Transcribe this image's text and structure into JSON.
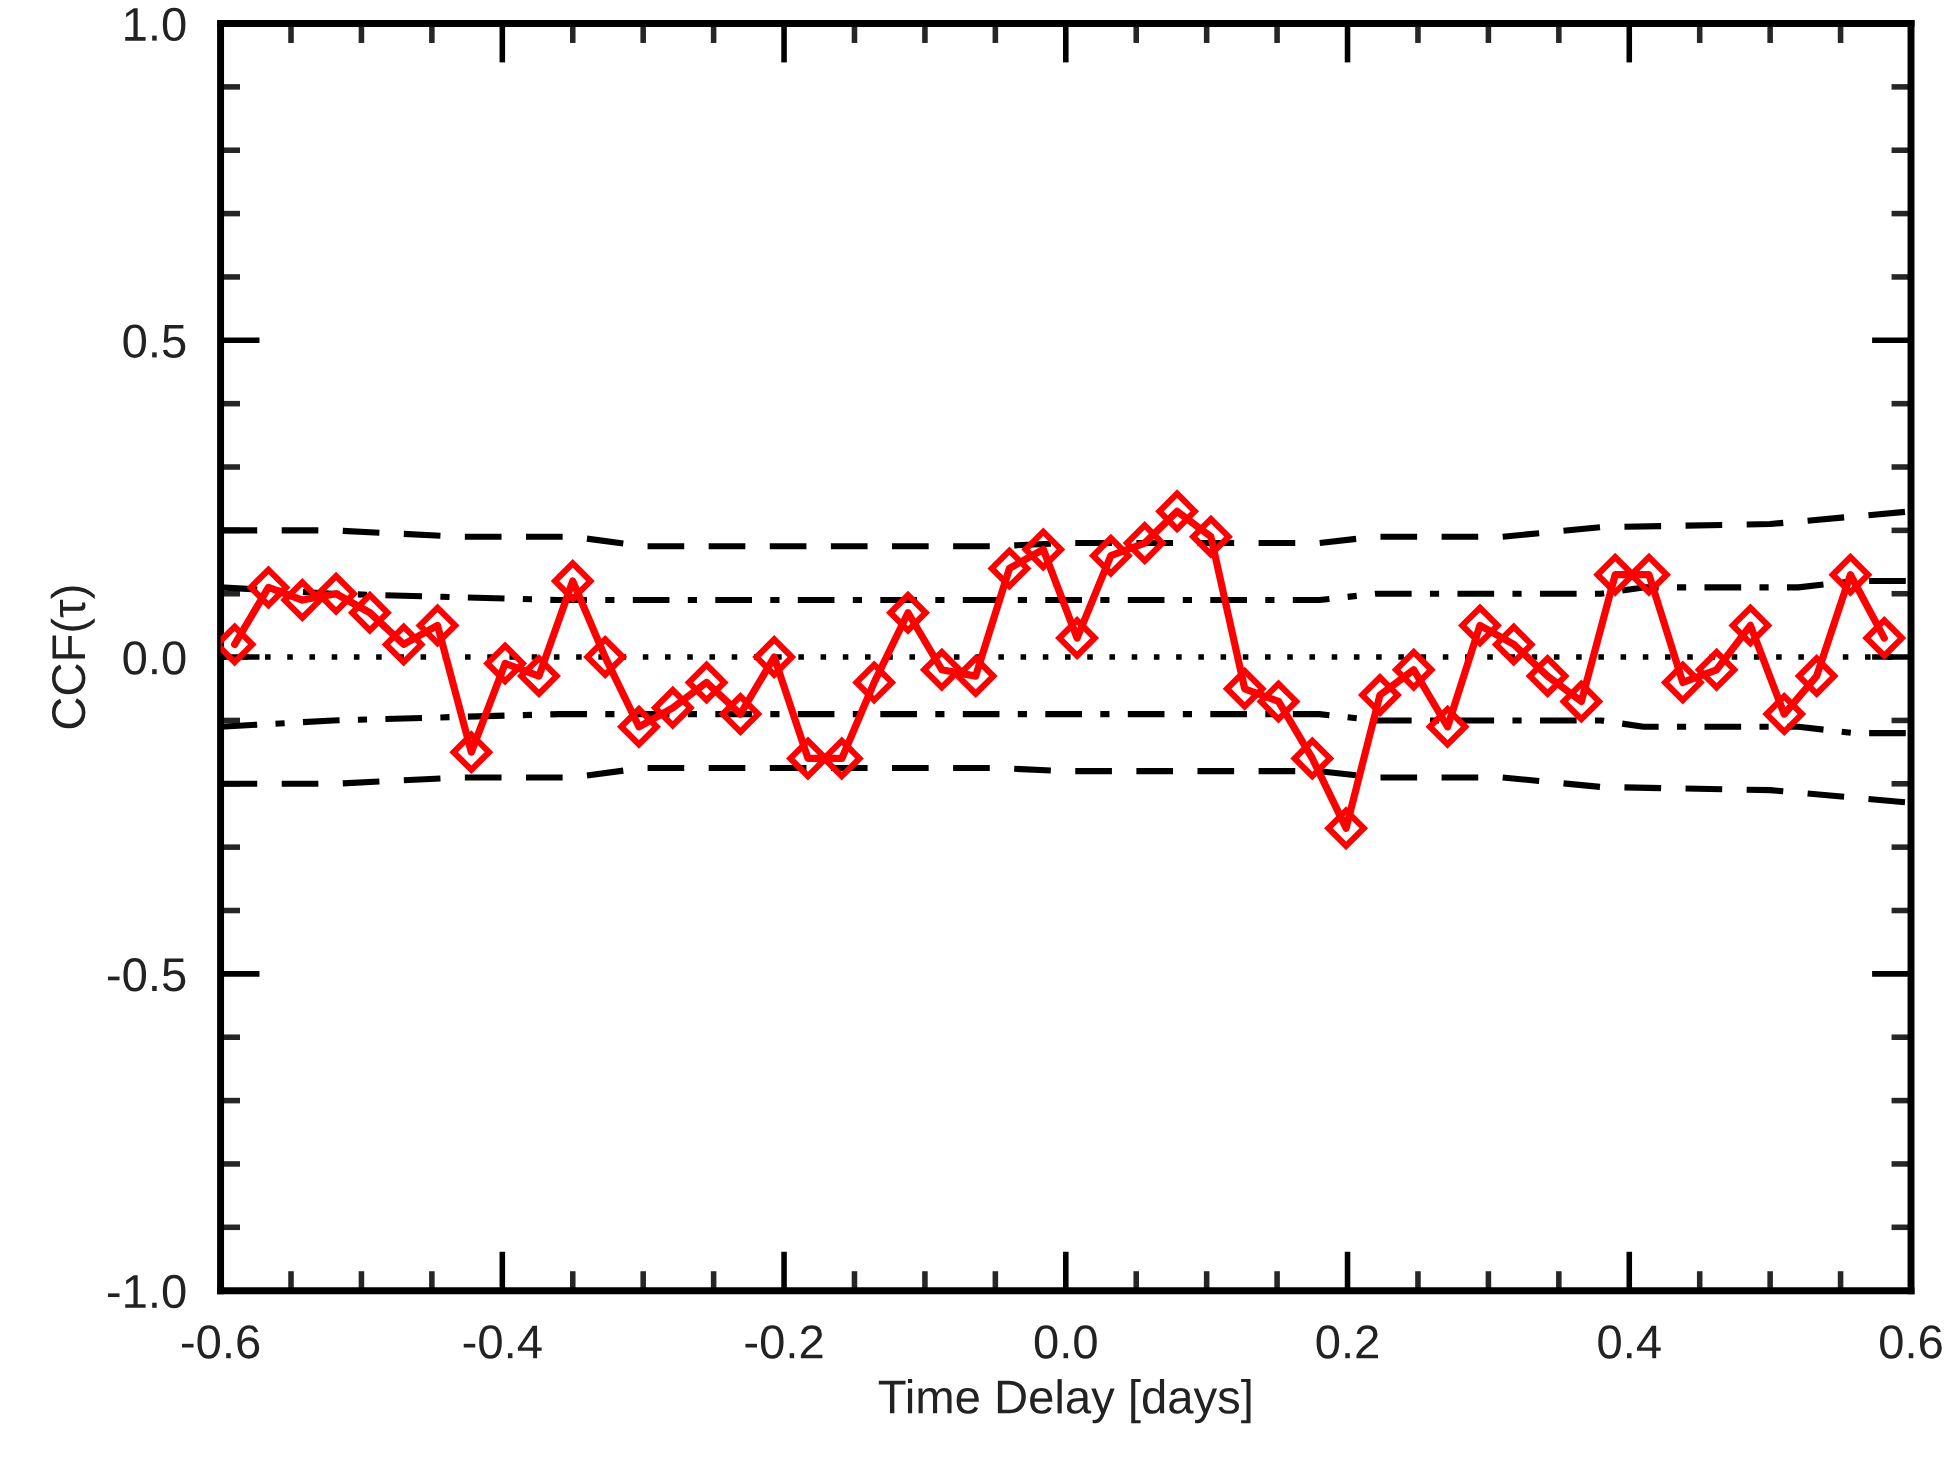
{
  "chart_data": {
    "type": "line",
    "xlabel": "Time Delay [days]",
    "ylabel": "CCF(τ)",
    "xlim": [
      -0.6,
      0.6
    ],
    "xticks": [
      -0.6,
      -0.4,
      -0.2,
      {
        "value": 0,
        "label": "0.0"
      },
      0.2,
      0.4,
      0.6
    ],
    "ylim": [
      -1.0,
      1.0
    ],
    "yticks": [
      {
        "value": -1,
        "label": "-1.0"
      },
      -0.5,
      {
        "value": 0,
        "label": "0.0"
      },
      0.5,
      {
        "value": 1,
        "label": "1.0"
      }
    ],
    "grid": false,
    "legend": false,
    "ref_lines": [
      {
        "axis": "y",
        "value": 0,
        "color": "#000000",
        "line_style": "dotted"
      }
    ],
    "series": [
      {
        "color": "#ff0000",
        "marker": "diamond",
        "line_style": "solid",
        "x": [
          -0.59,
          -0.566,
          -0.542,
          -0.518,
          -0.494,
          -0.47,
          -0.446,
          -0.422,
          -0.398,
          -0.374,
          -0.35,
          -0.327,
          -0.303,
          -0.279,
          -0.255,
          -0.231,
          -0.207,
          -0.183,
          -0.159,
          -0.136,
          -0.112,
          -0.088,
          -0.064,
          -0.04,
          -0.016,
          0.008,
          0.032,
          0.056,
          0.079,
          0.103,
          0.127,
          0.151,
          0.175,
          0.199,
          0.223,
          0.247,
          0.271,
          0.294,
          0.318,
          0.342,
          0.366,
          0.39,
          0.414,
          0.438,
          0.462,
          0.486,
          0.51,
          0.533,
          0.557,
          0.581
        ],
        "values": [
          0.02,
          0.11,
          0.09,
          0.1,
          0.07,
          0.02,
          0.05,
          -0.15,
          -0.01,
          -0.03,
          0.12,
          0.0,
          -0.11,
          -0.08,
          -0.04,
          -0.09,
          0.0,
          -0.16,
          -0.16,
          -0.04,
          0.07,
          -0.02,
          -0.03,
          0.14,
          0.17,
          0.03,
          0.16,
          0.18,
          0.23,
          0.19,
          -0.05,
          -0.07,
          -0.16,
          -0.27,
          -0.06,
          -0.02,
          -0.11,
          0.05,
          0.02,
          -0.03,
          -0.07,
          0.13,
          0.13,
          -0.04,
          -0.02,
          0.05,
          -0.09,
          -0.03,
          0.13,
          0.03
        ]
      },
      {
        "color": "#000000",
        "marker": "none",
        "line_style": "dashed",
        "x": [
          -0.6,
          -0.52,
          -0.43,
          -0.35,
          -0.3,
          -0.05,
          0.0,
          0.18,
          0.22,
          0.31,
          0.38,
          0.5,
          0.6
        ],
        "values": [
          0.2,
          0.2,
          0.19,
          0.19,
          0.175,
          0.175,
          0.18,
          0.18,
          0.19,
          0.19,
          0.205,
          0.21,
          0.23
        ]
      },
      {
        "color": "#000000",
        "marker": "none",
        "line_style": "dashed",
        "x": [
          -0.6,
          -0.52,
          -0.43,
          -0.35,
          -0.3,
          -0.05,
          0.0,
          0.18,
          0.22,
          0.31,
          0.38,
          0.5,
          0.6
        ],
        "values": [
          -0.2,
          -0.2,
          -0.19,
          -0.19,
          -0.175,
          -0.175,
          -0.18,
          -0.18,
          -0.19,
          -0.19,
          -0.205,
          -0.21,
          -0.23
        ]
      },
      {
        "color": "#000000",
        "marker": "none",
        "line_style": "dashdot",
        "x": [
          -0.6,
          -0.52,
          -0.36,
          -0.2,
          0.0,
          0.18,
          0.22,
          0.38,
          0.41,
          0.52,
          0.56,
          0.6
        ],
        "values": [
          0.11,
          0.1,
          0.09,
          0.09,
          0.09,
          0.09,
          0.1,
          0.1,
          0.11,
          0.11,
          0.12,
          0.12
        ]
      },
      {
        "color": "#000000",
        "marker": "none",
        "line_style": "dashdot",
        "x": [
          -0.6,
          -0.52,
          -0.36,
          -0.2,
          0.0,
          0.18,
          0.22,
          0.38,
          0.41,
          0.52,
          0.56,
          0.6
        ],
        "values": [
          -0.11,
          -0.1,
          -0.09,
          -0.09,
          -0.09,
          -0.09,
          -0.1,
          -0.1,
          -0.11,
          -0.11,
          -0.12,
          -0.12
        ]
      }
    ]
  }
}
